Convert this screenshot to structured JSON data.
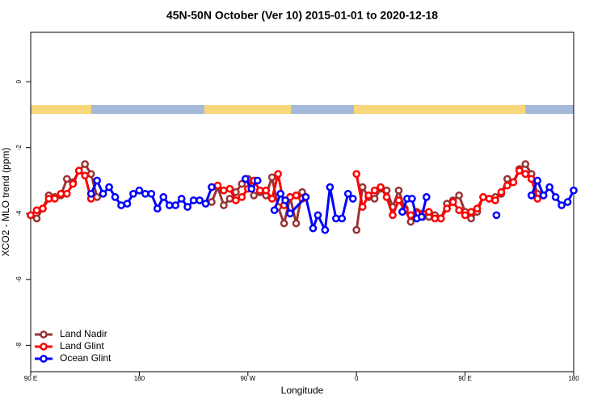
{
  "chart_data": {
    "type": "line",
    "title": "45N-50N October (Ver 10)   2015-01-01 to 2020-12-18",
    "x_label": "Longitude",
    "y_label": "XCO2 - MLO trend (ppm)",
    "xlim": [
      90,
      540
    ],
    "ylim": [
      -8.8,
      1.5
    ],
    "xticks": [
      {
        "value": 90,
        "label": "90 E"
      },
      180,
      {
        "value": 270,
        "label": "90 W"
      },
      {
        "value": 360,
        "label": "0"
      },
      {
        "value": 450,
        "label": "90 E"
      },
      {
        "value": 540,
        "label": "180"
      }
    ],
    "yticks": [
      0,
      -2,
      -4,
      -6,
      -8
    ],
    "legend": "bottomleft",
    "series": [
      {
        "name": "Land Nadir",
        "color": "#993333",
        "x": [
          90,
          95,
          100,
          105,
          110,
          115,
          120,
          125,
          130,
          135,
          140,
          145,
          190,
          240,
          245,
          250,
          255,
          260,
          265,
          270,
          275,
          280,
          285,
          290,
          295,
          300,
          305,
          310,
          315,
          340,
          360,
          365,
          370,
          375,
          380,
          385,
          390,
          395,
          400,
          405,
          410,
          415,
          420,
          425,
          430,
          435,
          440,
          445,
          450,
          455,
          460,
          465,
          470,
          475,
          480,
          485,
          490,
          495,
          500,
          505,
          510
        ],
        "values": [
          -4.05,
          -4.15,
          -3.85,
          -3.45,
          -3.5,
          -3.45,
          -2.95,
          -3.05,
          -2.7,
          -2.5,
          -2.8,
          -3.5,
          null,
          -3.65,
          -3.2,
          -3.75,
          -3.55,
          -3.35,
          -3.1,
          -2.95,
          -3.45,
          -3.35,
          -3.45,
          -2.9,
          -3.8,
          -4.3,
          -3.5,
          -4.3,
          -3.35,
          null,
          -4.5,
          -3.2,
          -3.5,
          -3.55,
          -3.25,
          -3.3,
          -3.8,
          -3.3,
          -3.85,
          -4.25,
          -3.95,
          -4.1,
          -4.1,
          -4.05,
          -4.15,
          -3.7,
          -3.6,
          -3.45,
          -3.95,
          -4.15,
          -3.95,
          -3.5,
          -3.55,
          -3.5,
          -3.4,
          -2.95,
          -3.05,
          -2.65,
          -2.5,
          -2.8,
          -3.4
        ]
      },
      {
        "name": "Land Glint",
        "color": "#ff0000",
        "x": [
          90,
          95,
          100,
          105,
          110,
          115,
          120,
          125,
          130,
          135,
          140,
          190,
          240,
          245,
          250,
          255,
          260,
          265,
          270,
          275,
          280,
          285,
          290,
          295,
          300,
          305,
          310,
          315,
          340,
          360,
          365,
          370,
          375,
          380,
          385,
          390,
          395,
          400,
          405,
          410,
          415,
          420,
          425,
          430,
          435,
          440,
          445,
          450,
          455,
          460,
          465,
          470,
          475,
          480,
          485,
          490,
          495,
          500,
          505,
          510
        ],
        "values": [
          -4.05,
          -3.9,
          -3.85,
          -3.55,
          -3.55,
          -3.4,
          -3.4,
          -3.1,
          -2.7,
          -2.85,
          -3.55,
          null,
          -3.2,
          -3.15,
          -3.3,
          -3.25,
          -3.6,
          -3.5,
          -3.25,
          -3.0,
          -3.3,
          -3.3,
          -3.55,
          -2.8,
          -3.75,
          -3.5,
          -3.45,
          -3.55,
          null,
          -2.8,
          -3.8,
          -3.45,
          -3.3,
          -3.2,
          -3.5,
          -4.05,
          -3.6,
          -3.9,
          -4.05,
          -4.0,
          -4.0,
          -3.95,
          -4.15,
          -4.15,
          -3.85,
          -3.65,
          -3.9,
          -4.05,
          -3.95,
          -3.85,
          -3.5,
          -3.55,
          -3.6,
          -3.35,
          -3.15,
          -3.05,
          -2.7,
          -2.8,
          -2.95,
          -3.55
        ]
      },
      {
        "name": "Ocean Glint",
        "color": "#0000ff",
        "x": [
          140,
          145,
          150,
          155,
          160,
          165,
          170,
          175,
          180,
          185,
          190,
          195,
          200,
          205,
          210,
          215,
          220,
          225,
          230,
          235,
          240,
          254,
          268,
          273,
          278,
          285,
          292,
          297,
          301,
          305,
          318,
          324,
          328,
          334,
          338,
          343,
          348,
          353,
          357,
          378,
          398,
          402,
          406,
          410,
          414,
          418,
          447,
          476,
          490,
          505,
          510,
          515,
          520,
          525,
          530,
          535,
          540
        ],
        "values": [
          -3.4,
          -3.0,
          -3.4,
          -3.2,
          -3.5,
          -3.75,
          -3.7,
          -3.4,
          -3.3,
          -3.4,
          -3.4,
          -3.85,
          -3.5,
          -3.75,
          -3.75,
          -3.55,
          -3.8,
          -3.6,
          -3.6,
          -3.7,
          -3.2,
          null,
          -2.95,
          -3.25,
          -3.0,
          null,
          -3.9,
          -3.4,
          -3.6,
          -4.0,
          -3.5,
          -4.45,
          -4.05,
          -4.5,
          -3.2,
          -4.15,
          -4.15,
          -3.4,
          -3.55,
          null,
          -3.95,
          -3.55,
          -3.55,
          -4.15,
          -4.1,
          -3.5,
          null,
          -4.05,
          null,
          -3.45,
          -3.0,
          -3.45,
          -3.2,
          -3.5,
          -3.75,
          -3.65,
          -3.3
        ]
      }
    ]
  }
}
